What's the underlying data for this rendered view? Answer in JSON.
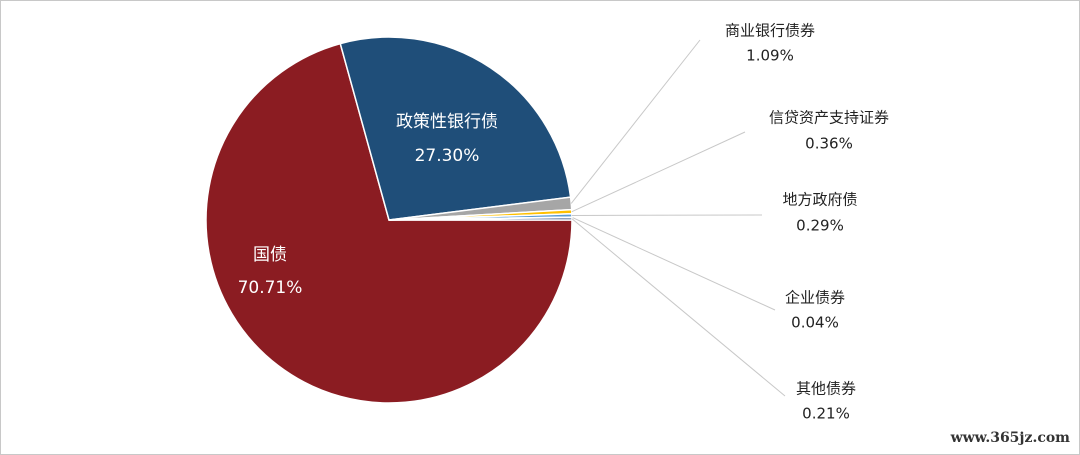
{
  "chart_data": {
    "type": "pie",
    "categories": [
      "国债",
      "政策性银行债",
      "商业银行债券",
      "信贷资产支持证券",
      "地方政府债",
      "企业债券",
      "其他债券"
    ],
    "values": [
      70.71,
      27.3,
      1.09,
      0.36,
      0.29,
      0.04,
      0.21
    ],
    "value_labels": [
      "70.71%",
      "27.30%",
      "1.09%",
      "0.36%",
      "0.29%",
      "0.04%",
      "0.21%"
    ],
    "colors": [
      "#8b1c22",
      "#1f4e79",
      "#a6a6a6",
      "#ffc000",
      "#5b9bd5",
      "#70ad47",
      "#264478"
    ],
    "watermark": "www.365jz.com"
  }
}
